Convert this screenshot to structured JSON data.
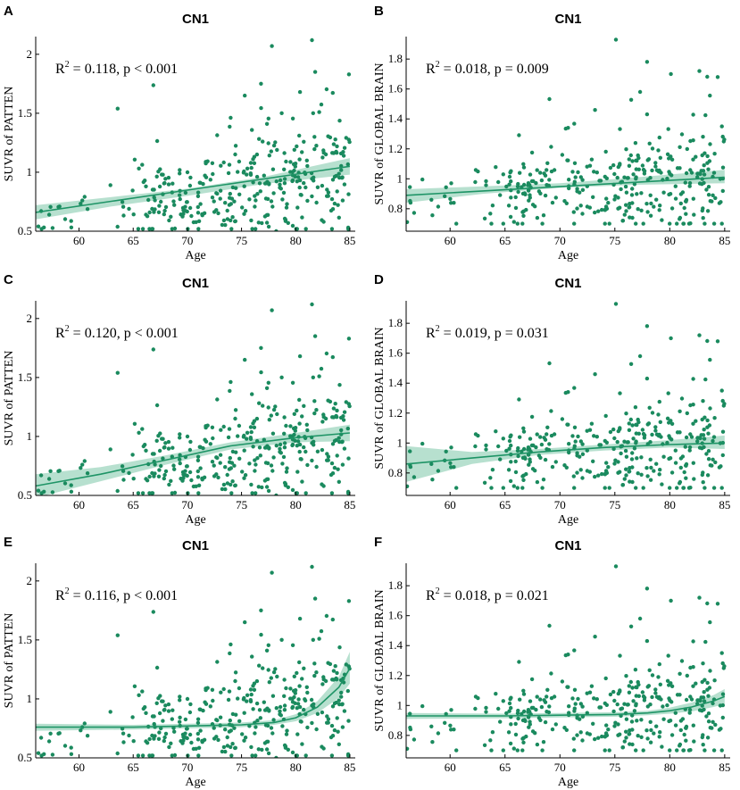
{
  "colors": {
    "points": "#1a8a5e",
    "fit_line": "#1e9466",
    "band": "#9fd6bf"
  },
  "chart_data": [
    {
      "id": "A",
      "type": "scatter",
      "letter": "A",
      "title": "CN1",
      "xlabel": "Age",
      "ylabel": "SUVR of PATTEN",
      "xlim": [
        56,
        85.5
      ],
      "ylim": [
        0.5,
        2.15
      ],
      "xticks": [
        60,
        65,
        70,
        75,
        80,
        85
      ],
      "yticks": [
        0.5,
        1,
        1.5,
        2
      ],
      "annotation": {
        "r2_label": "R",
        "r2_sup": "2",
        "text": " = 0.118, p < 0.001"
      },
      "fit": {
        "kind": "linear",
        "x": [
          56,
          85
        ],
        "y": [
          0.66,
          1.05
        ]
      },
      "band": {
        "x": [
          56,
          63,
          70,
          77,
          85
        ],
        "lower": [
          0.6,
          0.71,
          0.8,
          0.9,
          0.98
        ],
        "upper": [
          0.72,
          0.79,
          0.86,
          0.96,
          1.12
        ]
      },
      "seed": 11
    },
    {
      "id": "B",
      "type": "scatter",
      "letter": "B",
      "title": "CN1",
      "xlabel": "Age",
      "ylabel": "SUVR of GLOBAL BRAIN",
      "xlim": [
        56,
        85.5
      ],
      "ylim": [
        0.65,
        1.95
      ],
      "xticks": [
        60,
        65,
        70,
        75,
        80,
        85
      ],
      "yticks": [
        0.8,
        1,
        1.2,
        1.4,
        1.6,
        1.8
      ],
      "annotation": {
        "r2_label": "R",
        "r2_sup": "2",
        "text": " = 0.018, p = 0.009"
      },
      "fit": {
        "kind": "linear",
        "x": [
          56,
          85
        ],
        "y": [
          0.89,
          1.01
        ]
      },
      "band": {
        "x": [
          56,
          63,
          70,
          77,
          85
        ],
        "lower": [
          0.84,
          0.9,
          0.94,
          0.96,
          0.97
        ],
        "upper": [
          0.93,
          0.95,
          0.97,
          1.01,
          1.06
        ]
      },
      "seed": 23
    },
    {
      "id": "C",
      "type": "scatter",
      "letter": "C",
      "title": "CN1",
      "xlabel": "Age",
      "ylabel": "SUVR of PATTEN",
      "xlim": [
        56,
        85.5
      ],
      "ylim": [
        0.5,
        2.15
      ],
      "xticks": [
        60,
        65,
        70,
        75,
        80,
        85
      ],
      "yticks": [
        0.5,
        1,
        1.5,
        2
      ],
      "annotation": {
        "r2_label": "R",
        "r2_sup": "2",
        "text": " = 0.120, p < 0.001"
      },
      "fit": {
        "kind": "quadratic",
        "x": [
          56,
          62,
          68,
          74,
          80,
          85
        ],
        "y": [
          0.58,
          0.68,
          0.8,
          0.92,
          0.99,
          1.03
        ]
      },
      "band": {
        "x": [
          56,
          62,
          68,
          74,
          80,
          85
        ],
        "lower": [
          0.48,
          0.62,
          0.76,
          0.89,
          0.95,
          0.96
        ],
        "upper": [
          0.68,
          0.74,
          0.84,
          0.95,
          1.03,
          1.1
        ]
      },
      "seed": 11
    },
    {
      "id": "D",
      "type": "scatter",
      "letter": "D",
      "title": "CN1",
      "xlabel": "Age",
      "ylabel": "SUVR of GLOBAL BRAIN",
      "xlim": [
        56,
        85.5
      ],
      "ylim": [
        0.65,
        1.95
      ],
      "xticks": [
        60,
        65,
        70,
        75,
        80,
        85
      ],
      "yticks": [
        0.8,
        1,
        1.2,
        1.4,
        1.6,
        1.8
      ],
      "annotation": {
        "r2_label": "R",
        "r2_sup": "2",
        "text": " = 0.019, p = 0.031"
      },
      "fit": {
        "kind": "quadratic",
        "x": [
          56,
          62,
          68,
          74,
          80,
          85
        ],
        "y": [
          0.86,
          0.9,
          0.94,
          0.97,
          0.99,
          1.0
        ]
      },
      "band": {
        "x": [
          56,
          62,
          68,
          74,
          80,
          85
        ],
        "lower": [
          0.74,
          0.86,
          0.92,
          0.95,
          0.97,
          0.96
        ],
        "upper": [
          0.98,
          0.94,
          0.96,
          0.99,
          1.02,
          1.05
        ]
      },
      "seed": 23
    },
    {
      "id": "E",
      "type": "scatter",
      "letter": "E",
      "title": "CN1",
      "xlabel": "Age",
      "ylabel": "SUVR of PATTEN",
      "xlim": [
        56,
        85.5
      ],
      "ylim": [
        0.5,
        2.15
      ],
      "xticks": [
        60,
        65,
        70,
        75,
        80,
        85
      ],
      "yticks": [
        0.5,
        1,
        1.5,
        2
      ],
      "annotation": {
        "r2_label": "R",
        "r2_sup": "2",
        "text": " = 0.116, p < 0.001"
      },
      "fit": {
        "kind": "exponential",
        "x": [
          56,
          65,
          70,
          75,
          78,
          80,
          82,
          84,
          85
        ],
        "y": [
          0.76,
          0.76,
          0.77,
          0.78,
          0.8,
          0.84,
          0.93,
          1.1,
          1.26
        ]
      },
      "band": {
        "x": [
          56,
          65,
          70,
          75,
          78,
          80,
          82,
          84,
          85
        ],
        "lower": [
          0.73,
          0.74,
          0.75,
          0.76,
          0.78,
          0.81,
          0.88,
          1.01,
          1.13
        ],
        "upper": [
          0.79,
          0.78,
          0.79,
          0.8,
          0.82,
          0.87,
          0.98,
          1.19,
          1.4
        ]
      },
      "seed": 11
    },
    {
      "id": "F",
      "type": "scatter",
      "letter": "F",
      "title": "CN1",
      "xlabel": "Age",
      "ylabel": "SUVR of GLOBAL BRAIN",
      "xlim": [
        56,
        85.5
      ],
      "ylim": [
        0.65,
        1.95
      ],
      "xticks": [
        60,
        65,
        70,
        75,
        80,
        85
      ],
      "yticks": [
        0.8,
        1,
        1.2,
        1.4,
        1.6,
        1.8
      ],
      "annotation": {
        "r2_label": "R",
        "r2_sup": "2",
        "text": " = 0.018, p = 0.021"
      },
      "fit": {
        "kind": "exponential",
        "x": [
          56,
          65,
          70,
          75,
          78,
          80,
          82,
          84,
          85
        ],
        "y": [
          0.93,
          0.93,
          0.935,
          0.94,
          0.95,
          0.965,
          0.99,
          1.03,
          1.06
        ]
      },
      "band": {
        "x": [
          56,
          65,
          70,
          75,
          78,
          80,
          82,
          84,
          85
        ],
        "lower": [
          0.91,
          0.915,
          0.92,
          0.925,
          0.935,
          0.945,
          0.96,
          0.99,
          1.01
        ],
        "upper": [
          0.95,
          0.945,
          0.95,
          0.955,
          0.965,
          0.985,
          1.02,
          1.07,
          1.11
        ]
      },
      "seed": 23
    }
  ],
  "points_A": [],
  "notes": "Scatter points are a deterministic approximation of the ~350 subjects per panel."
}
